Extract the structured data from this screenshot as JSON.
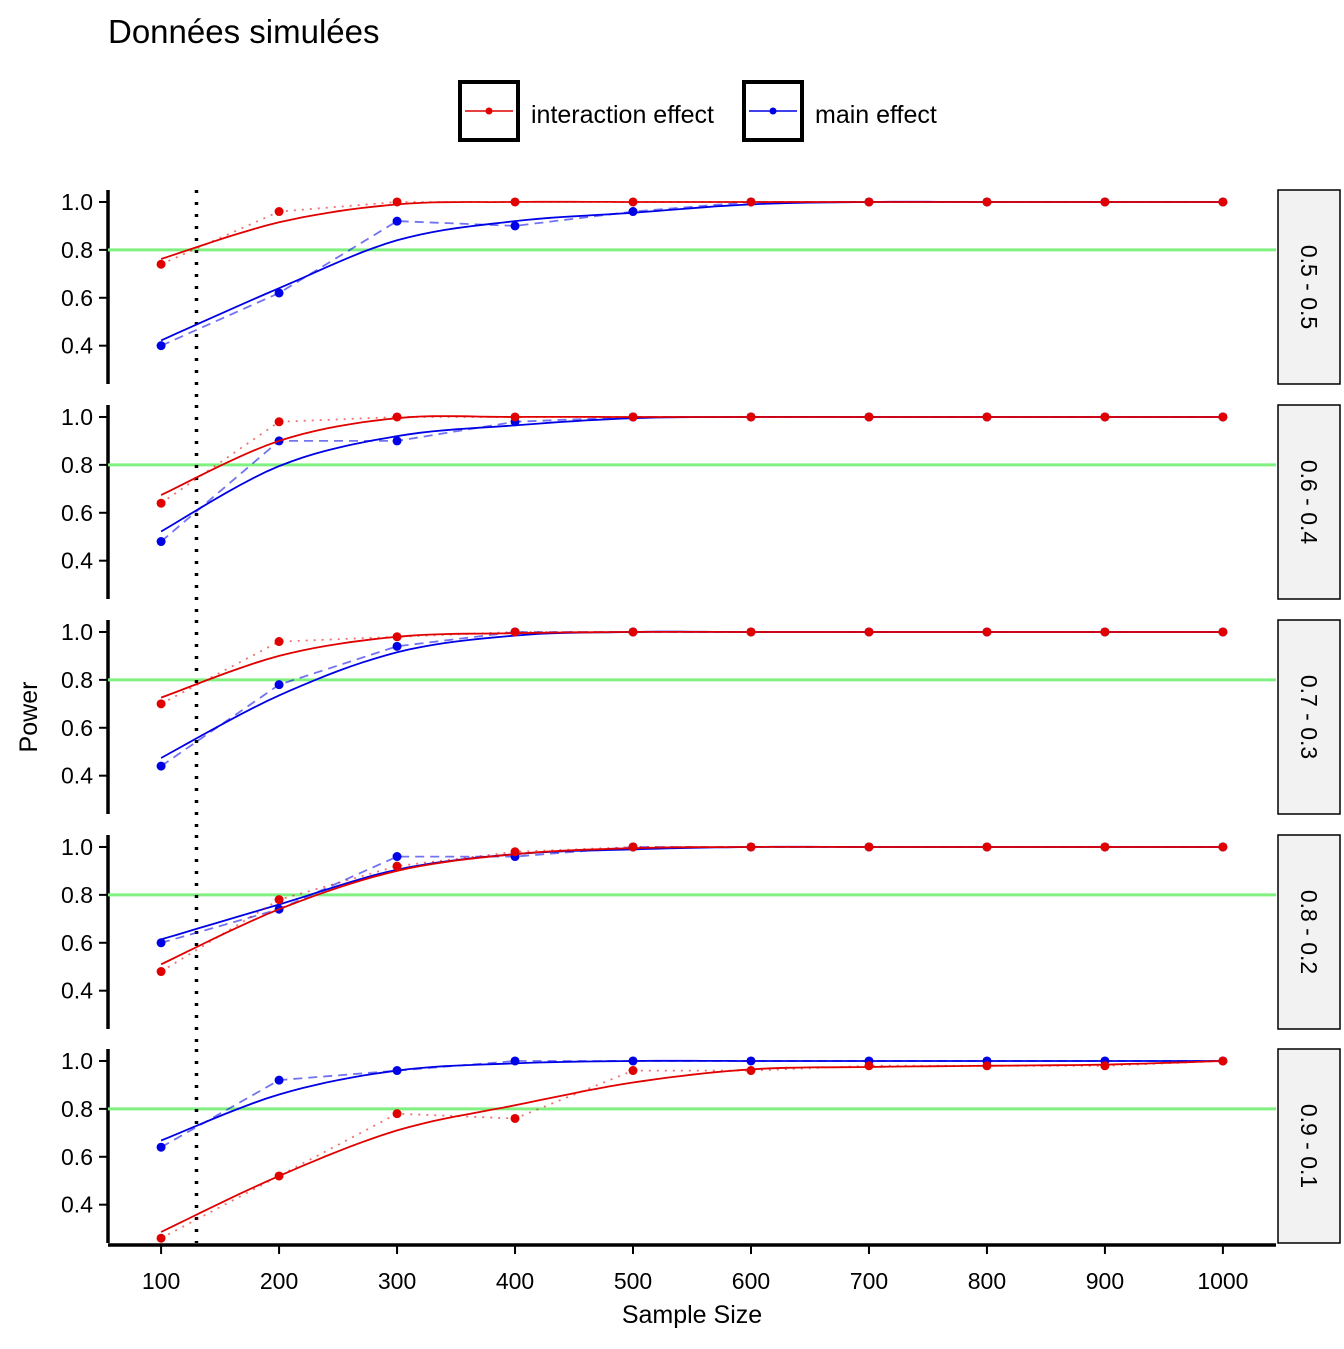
{
  "chart_data": {
    "type": "line",
    "title": "Données simulées",
    "xlabel": "Sample Size",
    "ylabel": "Power",
    "x": [
      100,
      200,
      300,
      400,
      500,
      600,
      700,
      800,
      900,
      1000
    ],
    "x_ticks": [
      100,
      200,
      300,
      400,
      500,
      600,
      700,
      800,
      900,
      1000
    ],
    "xlim": [
      55,
      1045
    ],
    "ylim_panel": [
      0.24,
      1.05
    ],
    "y_ticks": [
      "0.4",
      "0.6",
      "0.8",
      "1.0"
    ],
    "threshold_power": 0.8,
    "reference_sample_size": 130,
    "legend": {
      "placement": "top",
      "entries": [
        {
          "key": "interaction",
          "label": "interaction effect",
          "color": "#e00000"
        },
        {
          "key": "main",
          "label": "main effect",
          "color": "#0000e6"
        }
      ]
    },
    "colors": {
      "interaction": "#e00000",
      "main": "#0000e6",
      "threshold": "#80f080",
      "strip_bg": "#f2f2f2"
    },
    "panels": [
      {
        "label": "0.5 - 0.5",
        "ylim": [
          0.24,
          1.05
        ],
        "interaction": [
          0.74,
          0.96,
          1.0,
          1.0,
          1.0,
          1.0,
          1.0,
          1.0,
          1.0,
          1.0
        ],
        "main": [
          0.4,
          0.62,
          0.92,
          0.9,
          0.96,
          1.0,
          1.0,
          1.0,
          1.0,
          1.0
        ]
      },
      {
        "label": "0.6 - 0.4",
        "ylim": [
          0.24,
          1.05
        ],
        "interaction": [
          0.64,
          0.98,
          1.0,
          1.0,
          1.0,
          1.0,
          1.0,
          1.0,
          1.0,
          1.0
        ],
        "main": [
          0.48,
          0.9,
          0.9,
          0.98,
          1.0,
          1.0,
          1.0,
          1.0,
          1.0,
          1.0
        ]
      },
      {
        "label": "0.7 - 0.3",
        "ylim": [
          0.24,
          1.05
        ],
        "interaction": [
          0.7,
          0.96,
          0.98,
          1.0,
          1.0,
          1.0,
          1.0,
          1.0,
          1.0,
          1.0
        ],
        "main": [
          0.44,
          0.78,
          0.94,
          1.0,
          1.0,
          1.0,
          1.0,
          1.0,
          1.0,
          1.0
        ]
      },
      {
        "label": "0.8 - 0.2",
        "ylim": [
          0.24,
          1.05
        ],
        "interaction": [
          0.48,
          0.78,
          0.92,
          0.98,
          1.0,
          1.0,
          1.0,
          1.0,
          1.0,
          1.0
        ],
        "main": [
          0.6,
          0.74,
          0.96,
          0.96,
          1.0,
          1.0,
          1.0,
          1.0,
          1.0,
          1.0
        ]
      },
      {
        "label": "0.9 - 0.1",
        "ylim": [
          0.24,
          1.05
        ],
        "interaction": [
          0.26,
          0.52,
          0.78,
          0.76,
          0.96,
          0.96,
          0.98,
          0.98,
          0.98,
          1.0
        ],
        "main": [
          0.64,
          0.92,
          0.96,
          1.0,
          1.0,
          1.0,
          1.0,
          1.0,
          1.0,
          1.0
        ]
      }
    ]
  }
}
